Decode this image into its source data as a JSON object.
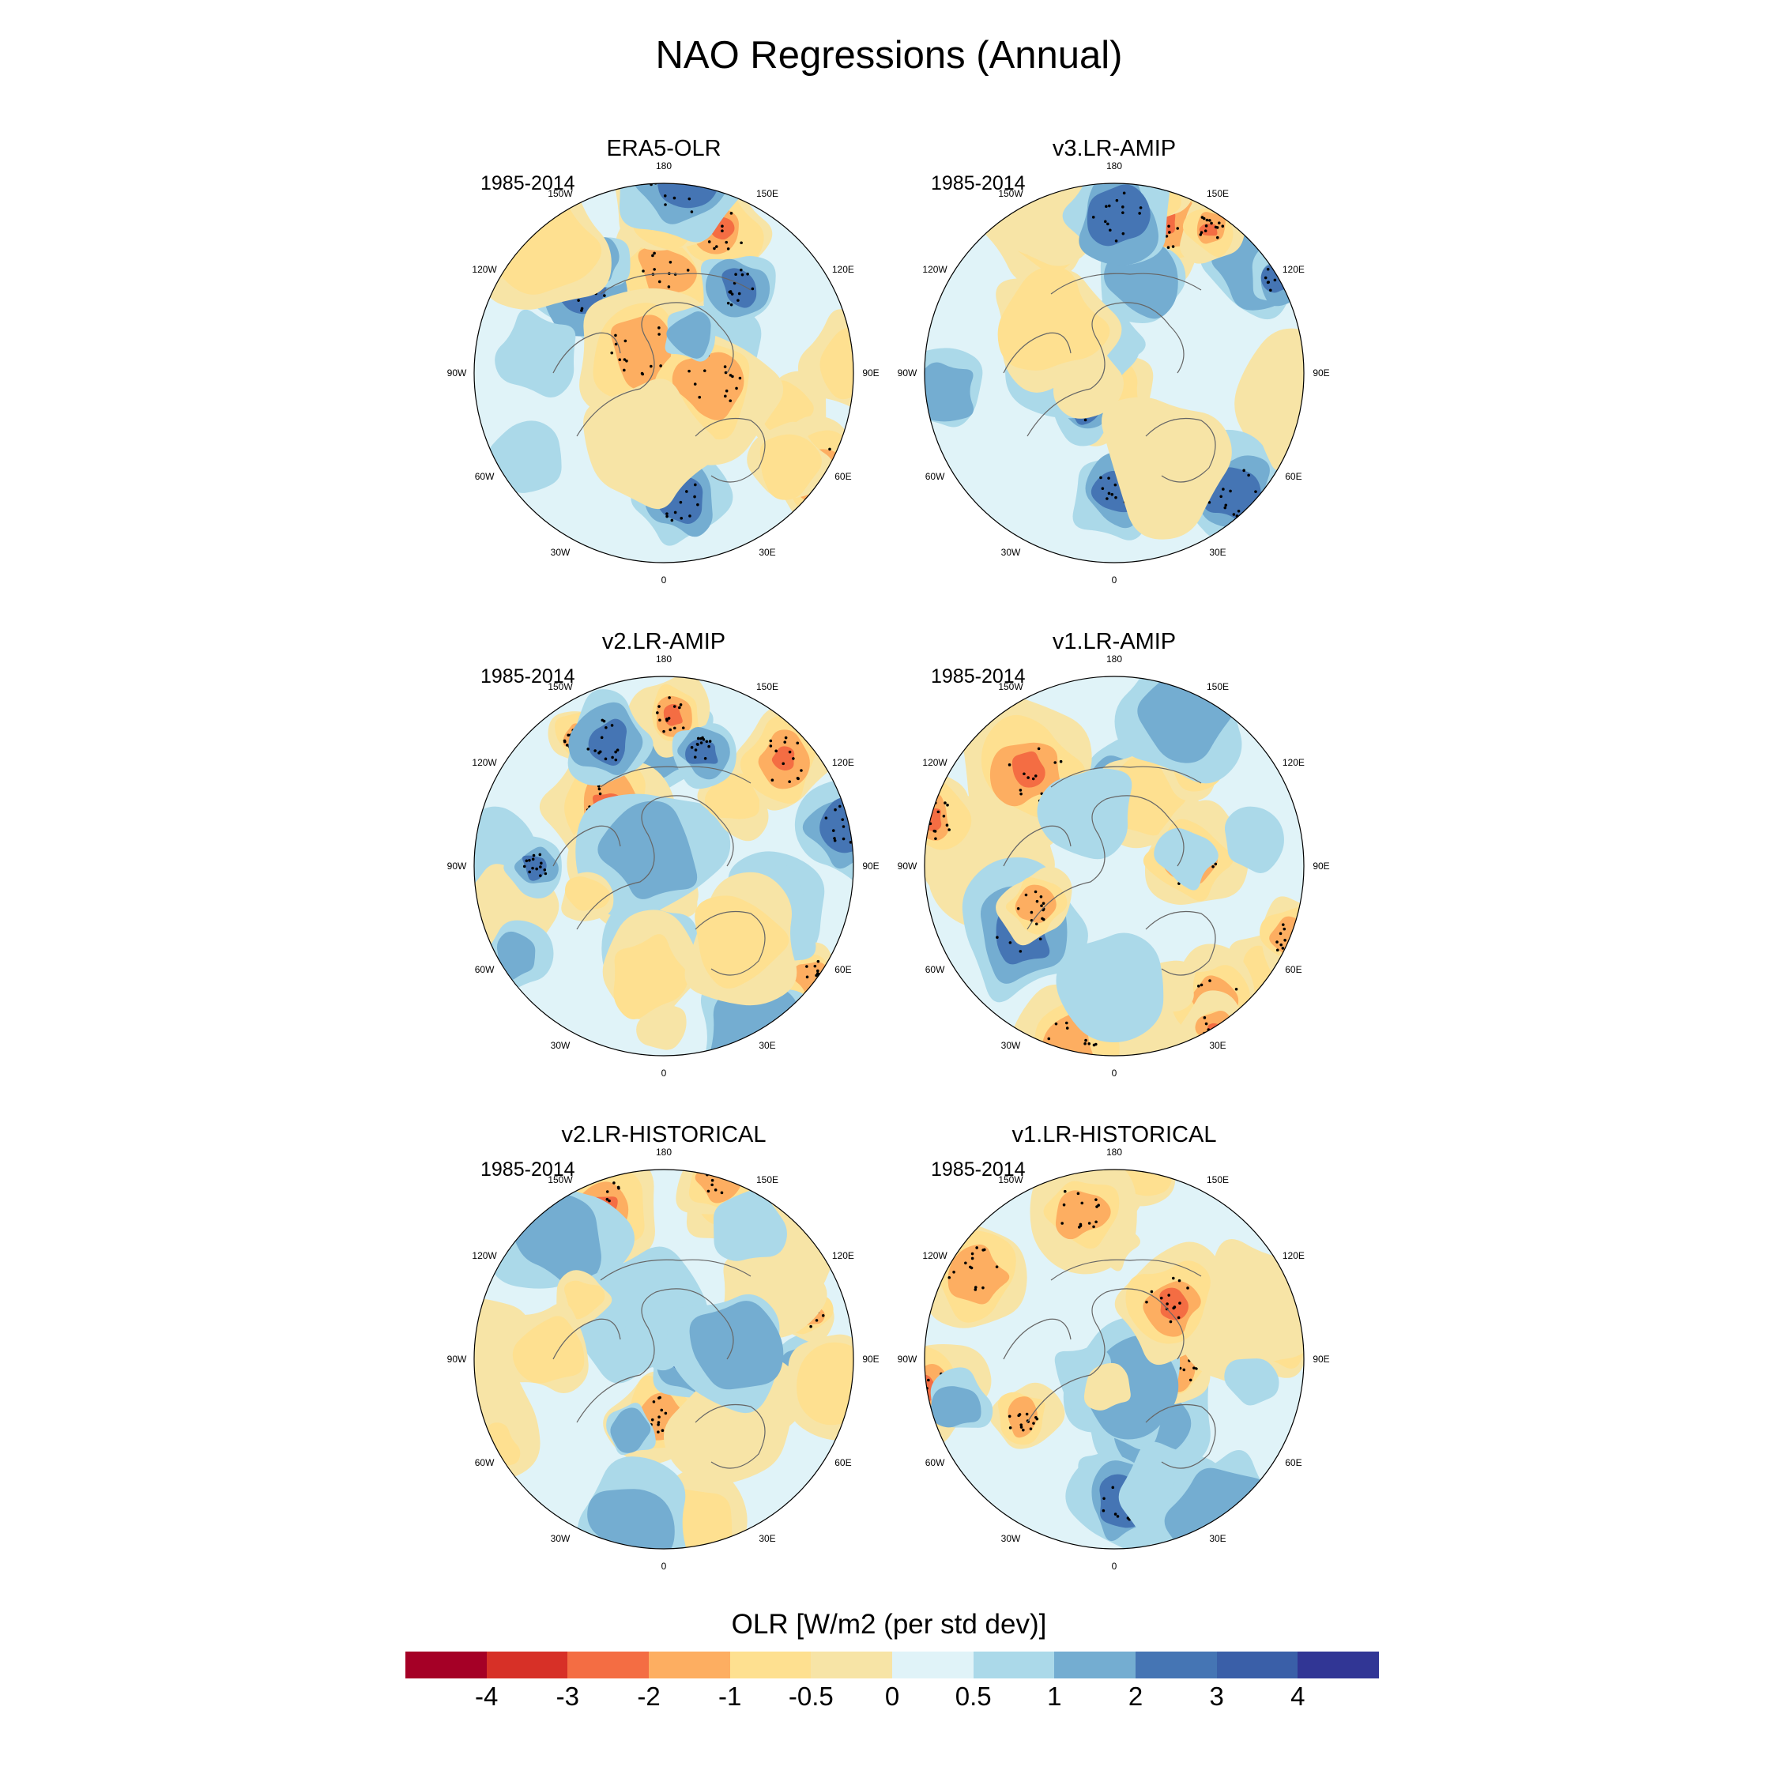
{
  "title": "NAO Regressions (Annual)",
  "panels": [
    {
      "name": "ERA5-OLR",
      "period": "1985-2014",
      "seed": 11
    },
    {
      "name": "v3.LR-AMIP",
      "period": "1985-2014",
      "seed": 23
    },
    {
      "name": "v2.LR-AMIP",
      "period": "1985-2014",
      "seed": 37
    },
    {
      "name": "v1.LR-AMIP",
      "period": "1985-2014",
      "seed": 41
    },
    {
      "name": "v2.LR-HISTORICAL",
      "period": "1985-2014",
      "seed": 53
    },
    {
      "name": "v1.LR-HISTORICAL",
      "period": "1985-2014",
      "seed": 67
    }
  ],
  "longitude_labels": [
    {
      "text": "0",
      "lon": 0
    },
    {
      "text": "30E",
      "lon": 30
    },
    {
      "text": "60E",
      "lon": 60
    },
    {
      "text": "90E",
      "lon": 90
    },
    {
      "text": "120E",
      "lon": 120
    },
    {
      "text": "150E",
      "lon": 150
    },
    {
      "text": "180",
      "lon": 180
    },
    {
      "text": "150W",
      "lon": 210
    },
    {
      "text": "120W",
      "lon": 240
    },
    {
      "text": "90W",
      "lon": 270
    },
    {
      "text": "60W",
      "lon": 300
    },
    {
      "text": "30W",
      "lon": 330
    }
  ],
  "colorbar": {
    "title": "OLR [W/m2 (per std dev)]",
    "levels": [
      "-4",
      "-3",
      "-2",
      "-1",
      "-0.5",
      "0",
      "0.5",
      "1",
      "2",
      "3",
      "4"
    ],
    "colors": [
      "#a50026",
      "#d73027",
      "#f46d43",
      "#fdae61",
      "#fee090",
      "#f7e4a6",
      "#e0f3f8",
      "#abd9e9",
      "#74add1",
      "#4575b4",
      "#3a5fa8",
      "#313695"
    ]
  }
}
